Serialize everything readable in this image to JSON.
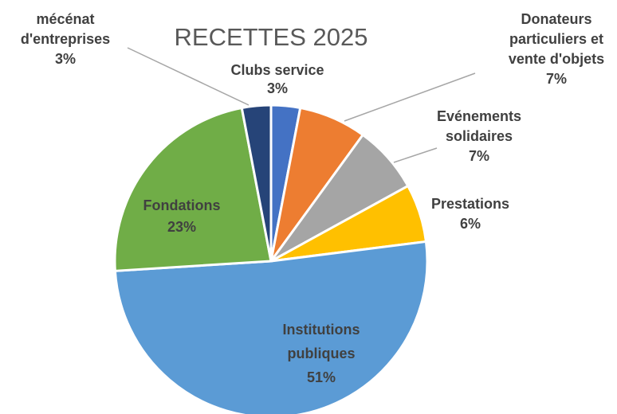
{
  "chart_data": {
    "type": "pie",
    "title": "RECETTES 2025",
    "slices": [
      {
        "label_lines": [
          "Clubs service",
          "3%"
        ],
        "value": 3,
        "color": "#4472c4"
      },
      {
        "label_lines": [
          "Donateurs",
          "particuliers et",
          "vente d'objets",
          "7%"
        ],
        "value": 7,
        "color": "#ed7d31"
      },
      {
        "label_lines": [
          "Evénements",
          "solidaires",
          "7%"
        ],
        "value": 7,
        "color": "#a5a5a5"
      },
      {
        "label_lines": [
          "Prestations",
          "6%"
        ],
        "value": 6,
        "color": "#ffc000"
      },
      {
        "label_lines": [
          "Institutions",
          "publiques",
          "51%"
        ],
        "value": 51,
        "color": "#5b9bd5"
      },
      {
        "label_lines": [
          "Fondations",
          "23%"
        ],
        "value": 23,
        "color": "#70ad47"
      },
      {
        "label_lines": [
          "mécénat",
          "d'entreprises",
          "3%"
        ],
        "value": 3,
        "color": "#264478"
      }
    ]
  }
}
